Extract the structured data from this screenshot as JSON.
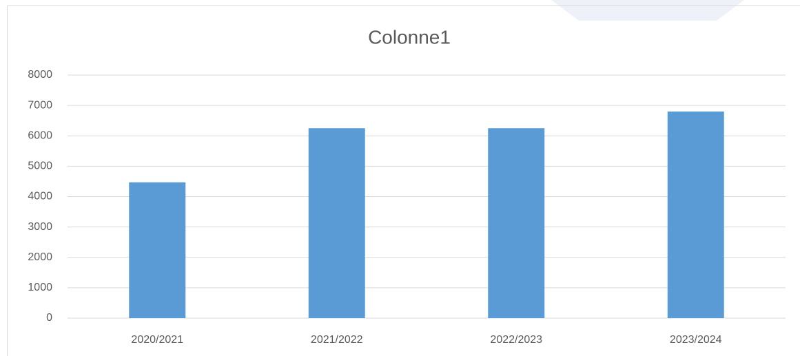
{
  "chart_data": {
    "type": "bar",
    "title": "Colonne1",
    "categories": [
      "2020/2021",
      "2021/2022",
      "2022/2023",
      "2023/2024"
    ],
    "values": [
      4470,
      6250,
      6250,
      6800
    ],
    "color": "#5b9bd5",
    "ylim": [
      0,
      8000
    ],
    "yticks": [
      0,
      1000,
      2000,
      3000,
      4000,
      5000,
      6000,
      7000,
      8000
    ],
    "grid": true
  }
}
